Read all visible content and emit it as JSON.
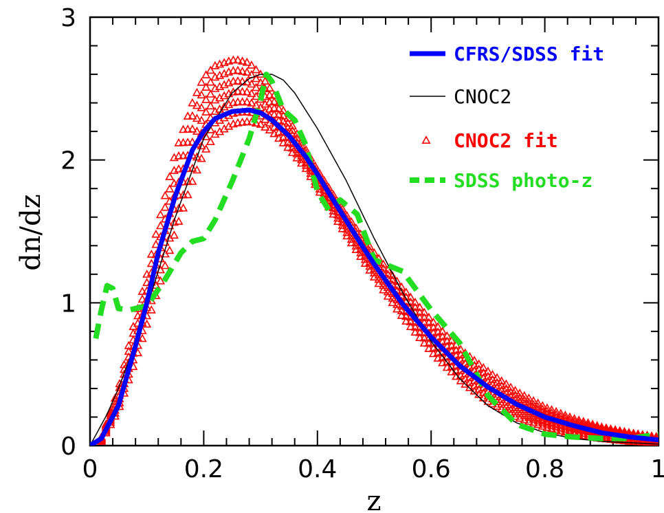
{
  "chart_data": {
    "type": "line",
    "xlabel": "z",
    "ylabel": "dn/dz",
    "xlim": [
      0,
      1
    ],
    "ylim": [
      0,
      3
    ],
    "x_ticks": [
      "0",
      "0.2",
      "0.4",
      "0.6",
      "0.8",
      "1"
    ],
    "y_ticks": [
      "0",
      "1",
      "2",
      "3"
    ],
    "legend_position": "top-right",
    "grid": false,
    "series": [
      {
        "name": "CFRS/SDSS fit",
        "color": "#0000ff",
        "style": "thick-solid",
        "x": [
          0.0,
          0.02,
          0.05,
          0.08,
          0.1,
          0.12,
          0.15,
          0.18,
          0.2,
          0.22,
          0.25,
          0.28,
          0.3,
          0.32,
          0.35,
          0.38,
          0.4,
          0.42,
          0.45,
          0.48,
          0.5,
          0.55,
          0.6,
          0.65,
          0.7,
          0.75,
          0.8,
          0.85,
          0.9,
          0.95,
          1.0
        ],
        "y": [
          0.0,
          0.05,
          0.28,
          0.7,
          1.0,
          1.35,
          1.75,
          2.07,
          2.2,
          2.29,
          2.34,
          2.35,
          2.33,
          2.28,
          2.17,
          2.02,
          1.9,
          1.77,
          1.58,
          1.39,
          1.27,
          0.99,
          0.76,
          0.56,
          0.41,
          0.29,
          0.2,
          0.14,
          0.09,
          0.06,
          0.04
        ]
      },
      {
        "name": "CNOC2",
        "color": "#000000",
        "style": "thin-solid",
        "x": [
          0.0,
          0.03,
          0.05,
          0.08,
          0.1,
          0.15,
          0.2,
          0.25,
          0.28,
          0.3,
          0.32,
          0.34,
          0.36,
          0.4,
          0.45,
          0.5,
          0.55,
          0.6,
          0.65,
          0.7,
          0.75,
          0.8,
          0.85,
          0.9,
          0.95,
          1.0
        ],
        "y": [
          0.0,
          0.22,
          0.4,
          0.72,
          0.97,
          1.6,
          2.15,
          2.47,
          2.57,
          2.6,
          2.6,
          2.56,
          2.47,
          2.22,
          1.86,
          1.45,
          1.07,
          0.73,
          0.47,
          0.28,
          0.16,
          0.09,
          0.05,
          0.03,
          0.02,
          0.01
        ]
      },
      {
        "name": "CNOC2 fit",
        "color": "#ff0000",
        "style": "triangles",
        "x": [
          0.02,
          0.05,
          0.08,
          0.1,
          0.12,
          0.15,
          0.18,
          0.2,
          0.22,
          0.25,
          0.26,
          0.28,
          0.3,
          0.32,
          0.35,
          0.38,
          0.4,
          0.45,
          0.5,
          0.55,
          0.6,
          0.65,
          0.7,
          0.75,
          0.8,
          0.85,
          0.9,
          0.95,
          1.0
        ],
        "y_low": [
          0.03,
          0.25,
          0.6,
          0.85,
          1.1,
          1.5,
          1.85,
          2.05,
          2.18,
          2.25,
          2.26,
          2.27,
          2.25,
          2.2,
          2.08,
          1.94,
          1.8,
          1.48,
          1.18,
          0.9,
          0.66,
          0.46,
          0.31,
          0.2,
          0.13,
          0.08,
          0.05,
          0.03,
          0.02
        ],
        "y_high": [
          0.06,
          0.4,
          0.9,
          1.2,
          1.55,
          2.05,
          2.4,
          2.58,
          2.66,
          2.7,
          2.7,
          2.68,
          2.6,
          2.48,
          2.28,
          2.07,
          1.93,
          1.62,
          1.35,
          1.1,
          0.88,
          0.68,
          0.52,
          0.38,
          0.27,
          0.19,
          0.13,
          0.09,
          0.06
        ]
      },
      {
        "name": "SDSS photo-z",
        "color": "#22dd22",
        "style": "thick-dashed",
        "x": [
          0.01,
          0.02,
          0.03,
          0.04,
          0.05,
          0.07,
          0.1,
          0.13,
          0.16,
          0.18,
          0.2,
          0.22,
          0.25,
          0.28,
          0.3,
          0.31,
          0.32,
          0.34,
          0.36,
          0.38,
          0.4,
          0.42,
          0.44,
          0.47,
          0.5,
          0.55,
          0.6,
          0.65,
          0.7,
          0.75,
          0.8,
          0.85,
          0.9,
          0.95,
          1.0
        ],
        "y": [
          0.75,
          0.95,
          1.12,
          1.1,
          0.96,
          0.95,
          0.98,
          1.15,
          1.35,
          1.43,
          1.45,
          1.58,
          1.85,
          2.15,
          2.42,
          2.6,
          2.55,
          2.35,
          2.28,
          2.1,
          1.78,
          1.65,
          1.72,
          1.62,
          1.3,
          1.22,
          0.95,
          0.72,
          0.35,
          0.15,
          0.08,
          0.06,
          0.05,
          0.05,
          0.08
        ]
      }
    ]
  }
}
